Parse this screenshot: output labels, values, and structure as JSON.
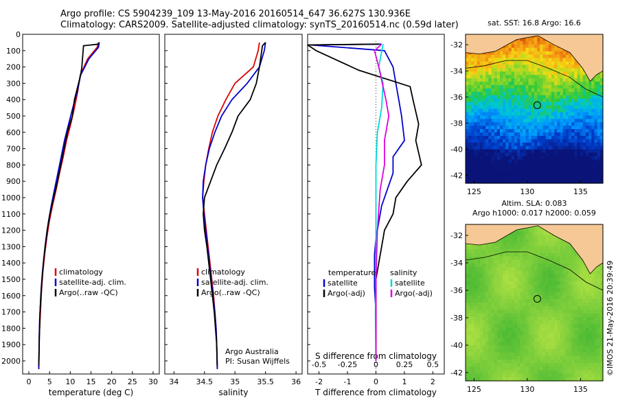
{
  "header": {
    "line1": "Argo profile: CS 5904239_109 13-May-2016 20160514_647 36.627S 130.936E",
    "line2": "Climatology: CARS2009. Satellite-adjusted climatology: synTS_20160514.nc (0.59d later)"
  },
  "chart_data": [
    {
      "type": "line",
      "name": "temperature-profile",
      "xlabel": "temperature (deg C)",
      "xlim": [
        -1.5,
        31.5
      ],
      "ylim": [
        0,
        2080
      ],
      "x_ticks": [
        0,
        5,
        10,
        15,
        20,
        25,
        30
      ],
      "y_ticks": [
        0,
        100,
        200,
        300,
        400,
        500,
        600,
        700,
        800,
        900,
        1000,
        1100,
        1200,
        1300,
        1400,
        1500,
        1600,
        1700,
        1800,
        1900,
        2000
      ],
      "legend": [
        "climatology",
        "satellite-adj. clim.",
        "Argo(..raw -QC)"
      ],
      "series": [
        {
          "name": "climatology",
          "color": "#dd0000",
          "x": [
            16.8,
            16.5,
            14.2,
            12.4,
            11.8,
            11.0,
            10.1,
            9.1,
            8.3,
            7.4,
            6.6,
            5.7,
            4.9,
            4.3,
            3.8,
            3.4,
            3.1,
            2.9,
            2.7,
            2.5,
            2.4
          ],
          "y": [
            50,
            80,
            150,
            250,
            350,
            450,
            550,
            650,
            750,
            850,
            950,
            1050,
            1150,
            1250,
            1350,
            1450,
            1550,
            1650,
            1750,
            1850,
            2050
          ]
        },
        {
          "name": "satellite-adj. clim.",
          "color": "#0000cc",
          "x": [
            17.0,
            16.8,
            14.5,
            12.5,
            11.7,
            10.6,
            9.6,
            8.6,
            7.8,
            7.0,
            6.2,
            5.4,
            4.7,
            4.2,
            3.7,
            3.3,
            3.0,
            2.8,
            2.6,
            2.5,
            2.4
          ],
          "y": [
            50,
            80,
            150,
            250,
            350,
            450,
            550,
            650,
            750,
            850,
            950,
            1050,
            1150,
            1250,
            1350,
            1450,
            1550,
            1650,
            1750,
            1850,
            2050
          ]
        },
        {
          "name": "Argo(..raw -QC)",
          "color": "#000000",
          "x": [
            17.0,
            16.8,
            13.2,
            12.8,
            12.5,
            11.5,
            11.0,
            10.5,
            9.3,
            8.5,
            7.7,
            6.9,
            6.0,
            5.1,
            4.4,
            3.9,
            3.5,
            3.2,
            2.9,
            2.7,
            2.6,
            2.5,
            2.4
          ],
          "y": [
            50,
            60,
            70,
            200,
            250,
            350,
            400,
            500,
            600,
            700,
            800,
            900,
            1000,
            1100,
            1200,
            1300,
            1400,
            1500,
            1600,
            1700,
            1800,
            1900,
            2030
          ]
        }
      ]
    },
    {
      "type": "line",
      "name": "salinity-profile",
      "xlabel": "salinity",
      "xlim": [
        33.85,
        36.1
      ],
      "ylim": [
        0,
        2080
      ],
      "x_ticks": [
        34,
        34.5,
        35,
        35.5,
        36
      ],
      "x_tick_labels": [
        "34",
        "34.5",
        "35",
        "35.5",
        "36"
      ],
      "legend": [
        "climatology",
        "satellite-adj. clim.",
        "Argo(..raw -QC)"
      ],
      "annotation": [
        "Argo Australia",
        "PI: Susan Wijffels"
      ],
      "series": [
        {
          "name": "climatology",
          "color": "#dd0000",
          "x": [
            35.4,
            35.38,
            35.3,
            35.0,
            34.85,
            34.72,
            34.63,
            34.57,
            34.52,
            34.49,
            34.47,
            34.5,
            34.53,
            34.56,
            34.59,
            34.62,
            34.65,
            34.67,
            34.69,
            34.7,
            34.71
          ],
          "y": [
            50,
            100,
            200,
            300,
            400,
            500,
            600,
            700,
            800,
            900,
            1000,
            1100,
            1200,
            1300,
            1400,
            1500,
            1600,
            1700,
            1800,
            1900,
            2050
          ]
        },
        {
          "name": "satellite-adj. clim.",
          "color": "#0000cc",
          "x": [
            35.5,
            35.48,
            35.4,
            35.2,
            34.95,
            34.78,
            34.67,
            34.58,
            34.52,
            34.48,
            34.47,
            34.49,
            34.52,
            34.55,
            34.58,
            34.61,
            34.64,
            34.67,
            34.69,
            34.7,
            34.71
          ],
          "y": [
            50,
            100,
            200,
            300,
            400,
            500,
            600,
            700,
            800,
            900,
            1000,
            1100,
            1200,
            1300,
            1400,
            1500,
            1600,
            1700,
            1800,
            1900,
            2050
          ]
        },
        {
          "name": "Argo(..raw -QC)",
          "color": "#000000",
          "x": [
            35.5,
            35.45,
            35.4,
            35.35,
            35.25,
            35.05,
            34.95,
            34.83,
            34.7,
            34.6,
            34.5,
            34.48,
            34.5,
            34.54,
            34.57,
            34.6,
            34.63,
            34.66,
            34.68,
            34.7,
            34.71
          ],
          "y": [
            50,
            70,
            200,
            300,
            400,
            500,
            600,
            700,
            800,
            900,
            1000,
            1100,
            1200,
            1300,
            1400,
            1500,
            1600,
            1700,
            1800,
            1900,
            2030
          ]
        }
      ]
    },
    {
      "type": "line",
      "name": "difference-profile",
      "xlabel": "T difference from climatology",
      "xlabel_top": "S difference from climatology",
      "xlim": [
        -2.4,
        2.4
      ],
      "ylim": [
        0,
        2080
      ],
      "x_ticks": [
        -2,
        -1,
        0,
        1,
        2
      ],
      "x_ticks_top": [
        -0.5,
        -0.25,
        0,
        0.25,
        0.5
      ],
      "legend_left_title": "temperature",
      "legend_left": [
        "satellite",
        "Argo(-adj)"
      ],
      "legend_right_title": "salinity",
      "legend_right": [
        "satellite",
        "Argo(-adj)"
      ],
      "series": [
        {
          "name": "temperature satellite",
          "color": "#0000cc",
          "x": [
            0.2,
            -2.3,
            0.3,
            0.6,
            0.7,
            0.8,
            0.9,
            1.0,
            0.6,
            0.6,
            0.4,
            0.2,
            0.1,
            0.0,
            -0.05,
            -0.05,
            -0.05,
            0.0,
            0.0,
            0.0
          ],
          "y": [
            60,
            65,
            100,
            200,
            300,
            400,
            500,
            650,
            750,
            850,
            950,
            1050,
            1150,
            1250,
            1350,
            1450,
            1550,
            1700,
            1850,
            2000
          ]
        },
        {
          "name": "temperature Argo(-adj)",
          "color": "#000000",
          "x": [
            0.1,
            -2.4,
            -2.1,
            -0.6,
            1.2,
            1.3,
            1.5,
            1.4,
            1.6,
            1.1,
            0.7,
            0.6,
            0.3,
            0.2,
            0.1,
            0.0,
            0.0,
            0.0,
            0.0,
            0.0
          ],
          "y": [
            60,
            65,
            100,
            220,
            320,
            400,
            550,
            650,
            800,
            900,
            1000,
            1100,
            1200,
            1300,
            1400,
            1500,
            1600,
            1700,
            1850,
            2000
          ]
        },
        {
          "name": "salinity satellite",
          "color": "#00d8d8",
          "x": [
            0.25,
            0.1,
            0.25,
            0.2,
            0.05,
            0.0,
            0.0,
            0.0,
            0.0,
            -0.02,
            0.0
          ],
          "y": [
            60,
            200,
            300,
            450,
            600,
            800,
            1000,
            1200,
            1500,
            1700,
            2000
          ]
        },
        {
          "name": "salinity Argo(-adj)",
          "color": "#dd00dd",
          "x": [
            0.2,
            -0.05,
            0.1,
            0.35,
            0.45,
            0.3,
            0.3,
            0.15,
            0.05,
            0.0,
            0.0
          ],
          "y": [
            60,
            100,
            200,
            400,
            500,
            650,
            800,
            950,
            1200,
            1500,
            2000
          ]
        }
      ]
    },
    {
      "type": "heatmap",
      "name": "sst-map",
      "title": "sat. SST: 16.8 Argo: 16.6",
      "x_ticks": [
        125,
        130,
        135
      ],
      "y_ticks": [
        -32,
        -34,
        -36,
        -38,
        -40,
        -42
      ],
      "x_tick_labels": [
        "125",
        "130",
        "135"
      ],
      "y_tick_labels": [
        "-32",
        "-34",
        "-36",
        "-38",
        "-40",
        "-42"
      ],
      "argo_position": [
        130.936,
        -36.627
      ]
    },
    {
      "type": "heatmap",
      "name": "sla-map",
      "title_line1": "Altim. SLA: 0.083",
      "title_line2": "Argo h1000: 0.017 h2000: 0.059",
      "x_ticks": [
        125,
        130,
        135
      ],
      "y_ticks": [
        -32,
        -34,
        -36,
        -38,
        -40,
        -42
      ],
      "x_tick_labels": [
        "125",
        "130",
        "135"
      ],
      "y_tick_labels": [
        "-32",
        "-34",
        "-36",
        "-38",
        "-40",
        "-42"
      ],
      "argo_position": [
        130.936,
        -36.627
      ]
    }
  ],
  "credit": "©IMOS 21-May-2016 20:39:49"
}
